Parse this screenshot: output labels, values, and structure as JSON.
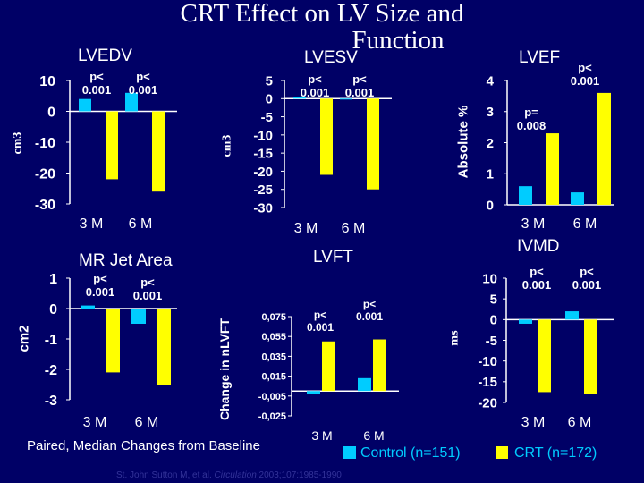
{
  "title_line1": "CRT Effect on LV Size and",
  "title_line2": "Function",
  "footnote": "Paired, Median Changes from Baseline",
  "legend": {
    "control": "Control (n=151)",
    "crt": "CRT (n=172)"
  },
  "citation": {
    "authors": "St. John Sutton M, et al. ",
    "journal": "Circulation",
    "ref": " 2003;107:1985-1990"
  },
  "colors": {
    "control": "#00ccff",
    "crt": "#ffff00",
    "background": "#000066"
  },
  "y_labels": {
    "lvedv": "cm3",
    "lvesv": "cm3",
    "lvef": "Absolute %",
    "mr": "cm2",
    "lvft": "Change in nLVFT",
    "ivmd": "ms"
  },
  "chart_data": [
    {
      "type": "bar",
      "title": "LVEDV",
      "ylabel": "cm3",
      "categories": [
        "3 M",
        "6 M"
      ],
      "ylim": [
        -30,
        10
      ],
      "yticks": [
        "10",
        "0",
        "-10",
        "-20",
        "-30"
      ],
      "series": [
        {
          "name": "Control (n=151)",
          "values": [
            4,
            6
          ]
        },
        {
          "name": "CRT (n=172)",
          "values": [
            -22,
            -26
          ]
        }
      ],
      "annotations": [
        [
          "p<",
          "0.001"
        ],
        [
          "p<",
          "0.001"
        ]
      ]
    },
    {
      "type": "bar",
      "title": "LVESV",
      "ylabel": "cm3",
      "categories": [
        "3 M",
        "6 M"
      ],
      "ylim": [
        -30,
        5
      ],
      "yticks": [
        "5",
        "0",
        "-5",
        "-10",
        "-15",
        "-20",
        "-25",
        "-30"
      ],
      "series": [
        {
          "name": "Control (n=151)",
          "values": [
            0.5,
            0
          ]
        },
        {
          "name": "CRT (n=172)",
          "values": [
            -21,
            -25
          ]
        }
      ],
      "annotations": [
        [
          "p<",
          "0.001"
        ],
        [
          "p<",
          "0.001"
        ]
      ]
    },
    {
      "type": "bar",
      "title": "LVEF",
      "ylabel": "Absolute %",
      "categories": [
        "3 M",
        "6 M"
      ],
      "ylim": [
        0,
        4
      ],
      "yticks": [
        "4",
        "3",
        "2",
        "1",
        "0"
      ],
      "series": [
        {
          "name": "Control (n=151)",
          "values": [
            0.6,
            0.4
          ]
        },
        {
          "name": "CRT (n=172)",
          "values": [
            2.3,
            3.6
          ]
        }
      ],
      "annotations": [
        [
          "p=",
          "0.008"
        ],
        [
          "p<",
          "0.001"
        ]
      ]
    },
    {
      "type": "bar",
      "title": "MR Jet Area",
      "ylabel": "cm2",
      "categories": [
        "3 M",
        "6 M"
      ],
      "ylim": [
        -3,
        1
      ],
      "yticks": [
        "1",
        "0",
        "-1",
        "-2",
        "-3"
      ],
      "series": [
        {
          "name": "Control (n=151)",
          "values": [
            0.1,
            -0.5
          ]
        },
        {
          "name": "CRT (n=172)",
          "values": [
            -2.1,
            -2.5
          ]
        }
      ],
      "annotations": [
        [
          "p<",
          "0.001"
        ],
        [
          "p<",
          "0.001"
        ]
      ]
    },
    {
      "type": "bar",
      "title": "LVFT",
      "ylabel": "Change in nLVFT",
      "categories": [
        "3 M",
        "6 M"
      ],
      "ylim": [
        -0.025,
        0.075
      ],
      "yticks": [
        "0,075",
        "0,055",
        "0,035",
        "0,015",
        "-0,005",
        "-0,025"
      ],
      "series": [
        {
          "name": "Control (n=151)",
          "values": [
            -0.003,
            0.013
          ]
        },
        {
          "name": "CRT (n=172)",
          "values": [
            0.05,
            0.052
          ]
        }
      ],
      "annotations": [
        [
          "p<",
          "0.001"
        ],
        [
          "p<",
          "0.001"
        ]
      ]
    },
    {
      "type": "bar",
      "title": "IVMD",
      "ylabel": "ms",
      "categories": [
        "3 M",
        "6 M"
      ],
      "ylim": [
        -20,
        10
      ],
      "yticks": [
        "10",
        "5",
        "0",
        "-5",
        "-10",
        "-15",
        "-20"
      ],
      "series": [
        {
          "name": "Control (n=151)",
          "values": [
            -1,
            2
          ]
        },
        {
          "name": "CRT (n=172)",
          "values": [
            -17.5,
            -18
          ]
        }
      ],
      "annotations": [
        [
          "p<",
          "0.001"
        ],
        [
          "p<",
          "0.001"
        ]
      ]
    }
  ]
}
